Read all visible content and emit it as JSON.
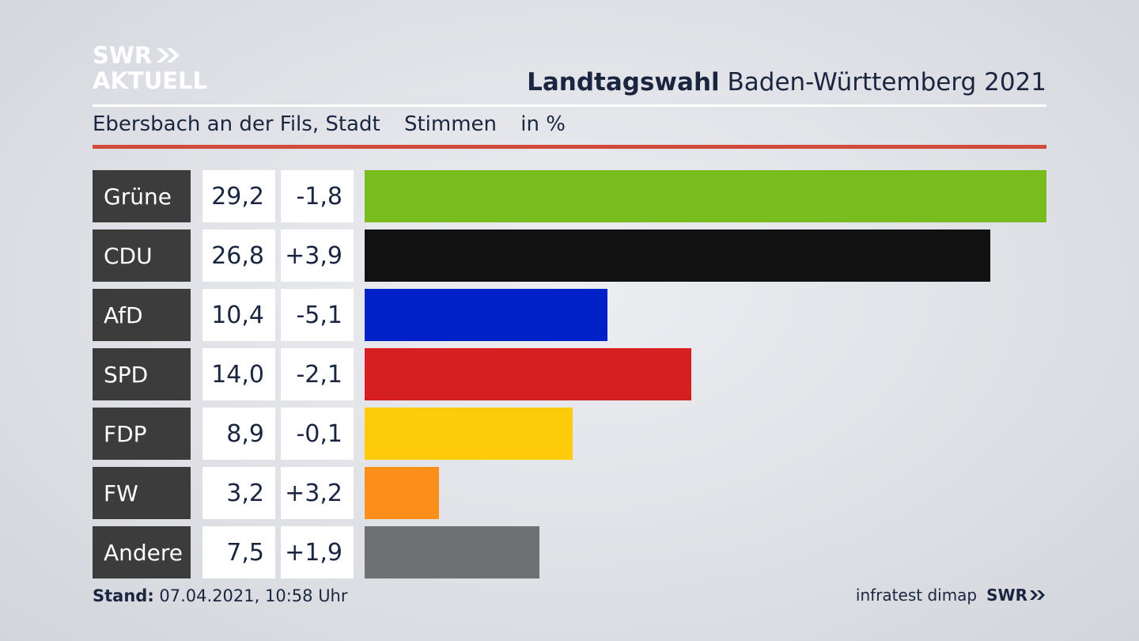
{
  "brand": {
    "line1": "SWR",
    "line2": "AKTUELL",
    "footer_logo": "SWR"
  },
  "header": {
    "title_bold": "Landtagswahl",
    "title_rest": "Baden-Württemberg 2021"
  },
  "subtitle": {
    "place": "Ebersbach an der Fils, Stadt",
    "measure": "Stimmen",
    "unit": "in %"
  },
  "colors": {
    "accent_rule": "#d14b3c",
    "label_bg": "#3c3c3c"
  },
  "chart_data": {
    "type": "bar",
    "orientation": "horizontal",
    "categories": [
      "Grüne",
      "CDU",
      "AfD",
      "SPD",
      "FDP",
      "FW",
      "Andere"
    ],
    "values": [
      29.2,
      26.8,
      10.4,
      14.0,
      8.9,
      3.2,
      7.5
    ],
    "value_labels": [
      "29,2",
      "26,8",
      "10,4",
      "14,0",
      "8,9",
      "3,2",
      "7,5"
    ],
    "change_labels": [
      "-1,8",
      "+3,9",
      "-5,1",
      "-2,1",
      "-0,1",
      "+3,2",
      "+1,9"
    ],
    "changes": [
      -1.8,
      3.9,
      -5.1,
      -2.1,
      -0.1,
      3.2,
      1.9
    ],
    "bar_colors": [
      "#78bc1e",
      "#111111",
      "#0021c8",
      "#d61f20",
      "#fecb0a",
      "#fb8f19",
      "#6f7071"
    ],
    "title": "Landtagswahl Baden-Württemberg 2021",
    "subtitle": "Ebersbach an der Fils, Stadt Stimmen in %",
    "xlim": [
      0,
      29.2
    ],
    "grid": false
  },
  "footer": {
    "stand_label": "Stand:",
    "stand_value": "07.04.2021, 10:58 Uhr",
    "source": "infratest dimap"
  }
}
